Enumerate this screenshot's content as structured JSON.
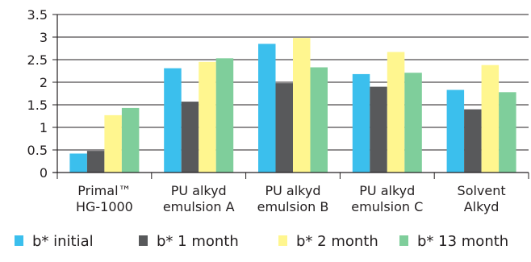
{
  "chart_data": {
    "type": "bar",
    "categories": [
      [
        "Primal™",
        "HG-1000"
      ],
      [
        "PU alkyd",
        "emulsion A"
      ],
      [
        "PU alkyd",
        "emulsion B"
      ],
      [
        "PU alkyd",
        "emulsion C"
      ],
      [
        "Solvent",
        "Alkyd"
      ]
    ],
    "series": [
      {
        "name": "b* initial",
        "color": "#3bbfed",
        "values": [
          0.42,
          2.31,
          2.85,
          2.18,
          1.83
        ]
      },
      {
        "name": "b* 1 month",
        "color": "#58595b",
        "values": [
          0.48,
          1.57,
          1.98,
          1.9,
          1.4
        ]
      },
      {
        "name": "b* 2 month",
        "color": "#fff68f",
        "values": [
          1.27,
          2.45,
          2.98,
          2.67,
          2.38
        ]
      },
      {
        "name": "b* 13 month",
        "color": "#7fce9b",
        "values": [
          1.43,
          2.53,
          2.33,
          2.21,
          1.78
        ]
      }
    ],
    "yticks": [
      "3.5",
      "3",
      "2.5",
      "2",
      "1.5",
      "1",
      "0.5",
      "0"
    ],
    "ylim": [
      0,
      3.5
    ],
    "grid": true,
    "legend": "bottom",
    "title": "",
    "xlabel": "",
    "ylabel": ""
  }
}
